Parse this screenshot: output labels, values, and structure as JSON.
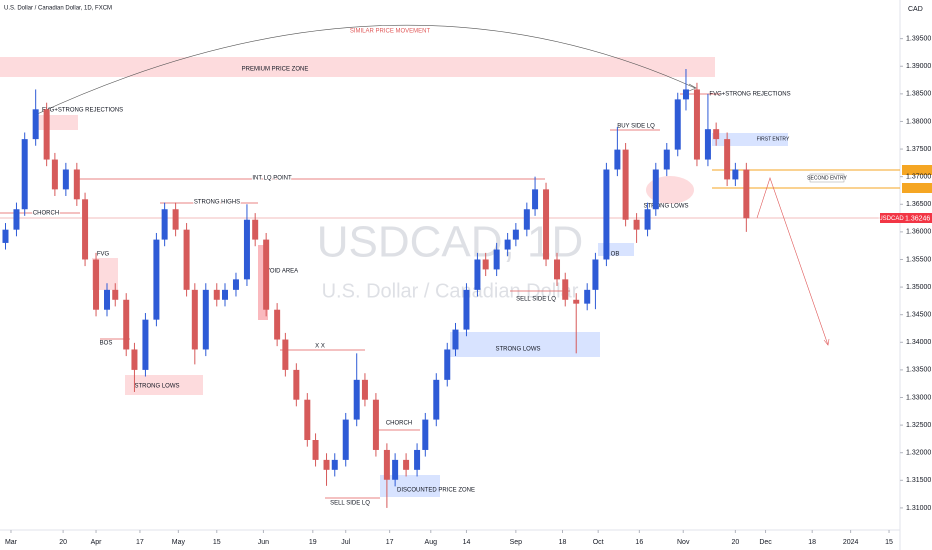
{
  "chart_data": {
    "type": "candlestick",
    "title": "U.S. Dollar / Canadian Dollar, 1D, FXCM",
    "watermark_symbol": "USDCAD, 1D",
    "watermark_name": "U.S. Dollar / Canadian Dollar",
    "currency": "CAD",
    "symbol": "USDCAD",
    "up_color": "#2e5bd6",
    "down_color": "#d65a5a",
    "x": [
      -2,
      2,
      5,
      9,
      13,
      16,
      20,
      24,
      27,
      31,
      35,
      38,
      42,
      45,
      49,
      53,
      56,
      60,
      64,
      67,
      71,
      75,
      78,
      82,
      86,
      89,
      93,
      97,
      100,
      104,
      108,
      111,
      115,
      118,
      122,
      126,
      129,
      133,
      137,
      140,
      144,
      148,
      151,
      155,
      159,
      162,
      166,
      170,
      173,
      177,
      181,
      184,
      188,
      191,
      195,
      199,
      202,
      206,
      210,
      213,
      217,
      221,
      224,
      228,
      232,
      235,
      239,
      243,
      246,
      250,
      254,
      257,
      261,
      264,
      268
    ],
    "open": [
      1.358,
      1.3604,
      1.3641,
      1.3768,
      1.3822,
      1.3731,
      1.3677,
      1.3713,
      1.3659,
      1.355,
      1.3459,
      1.3495,
      1.3477,
      1.3387,
      1.335,
      1.3441,
      1.3586,
      1.3641,
      1.3604,
      1.3495,
      1.3387,
      1.3495,
      1.3477,
      1.3495,
      1.3514,
      1.3622,
      1.3586,
      1.3459,
      1.3405,
      1.335,
      1.3296,
      1.3223,
      1.3187,
      1.3169,
      1.3187,
      1.326,
      1.3332,
      1.3296,
      1.3205,
      1.3151,
      1.3187,
      1.3169,
      1.3205,
      1.326,
      1.3332,
      1.3387,
      1.3423,
      1.3495,
      1.355,
      1.3532,
      1.3568,
      1.3586,
      1.3604,
      1.3641,
      1.3677,
      1.355,
      1.3514,
      1.3477,
      1.347,
      1.3495,
      1.355,
      1.3713,
      1.3749,
      1.3622,
      1.3604,
      1.3641,
      1.3713,
      1.3749,
      1.384,
      1.3858,
      1.3731,
      1.3786,
      1.3768,
      1.3695,
      1.3713
    ],
    "high": [
      1.3616,
      1.3653,
      1.378,
      1.3858,
      1.3834,
      1.3743,
      1.3725,
      1.3725,
      1.3671,
      1.3562,
      1.3507,
      1.3507,
      1.3489,
      1.3399,
      1.3453,
      1.3598,
      1.3653,
      1.3653,
      1.3616,
      1.3507,
      1.3507,
      1.3507,
      1.3507,
      1.3526,
      1.365,
      1.3634,
      1.3598,
      1.3471,
      1.3417,
      1.3362,
      1.3308,
      1.3235,
      1.3199,
      1.3199,
      1.3272,
      1.338,
      1.3344,
      1.3308,
      1.3217,
      1.3199,
      1.3199,
      1.3217,
      1.3272,
      1.3344,
      1.3399,
      1.3435,
      1.3507,
      1.3562,
      1.3562,
      1.358,
      1.3598,
      1.3616,
      1.3653,
      1.37,
      1.3689,
      1.3562,
      1.3526,
      1.3489,
      1.3507,
      1.3562,
      1.3725,
      1.379,
      1.3761,
      1.3634,
      1.3653,
      1.3725,
      1.3761,
      1.3852,
      1.3895,
      1.387,
      1.385,
      1.3798,
      1.378,
      1.3725,
      1.3725
    ],
    "low": [
      1.3568,
      1.3592,
      1.3629,
      1.3756,
      1.3719,
      1.3665,
      1.3665,
      1.3647,
      1.3538,
      1.3447,
      1.3447,
      1.3465,
      1.3375,
      1.331,
      1.3338,
      1.3429,
      1.3574,
      1.3592,
      1.3483,
      1.336,
      1.3375,
      1.3465,
      1.3465,
      1.3483,
      1.3502,
      1.3574,
      1.3447,
      1.3393,
      1.3338,
      1.3284,
      1.3211,
      1.3175,
      1.314,
      1.3157,
      1.3175,
      1.3248,
      1.3284,
      1.3193,
      1.31,
      1.3139,
      1.3157,
      1.3157,
      1.3193,
      1.3248,
      1.332,
      1.3375,
      1.3411,
      1.3483,
      1.352,
      1.352,
      1.3556,
      1.3574,
      1.3592,
      1.3629,
      1.3538,
      1.3502,
      1.3465,
      1.338,
      1.3458,
      1.346,
      1.3538,
      1.3701,
      1.361,
      1.358,
      1.3592,
      1.3629,
      1.3701,
      1.3737,
      1.382,
      1.3719,
      1.3719,
      1.3756,
      1.3683,
      1.3683,
      1.36
    ],
    "close": [
      1.3604,
      1.3641,
      1.3768,
      1.3822,
      1.3731,
      1.3677,
      1.3713,
      1.3659,
      1.355,
      1.3459,
      1.3495,
      1.3477,
      1.3387,
      1.335,
      1.3441,
      1.3586,
      1.3641,
      1.3604,
      1.3495,
      1.3387,
      1.3495,
      1.3477,
      1.3495,
      1.3514,
      1.3622,
      1.3586,
      1.3459,
      1.3405,
      1.335,
      1.3296,
      1.3223,
      1.3187,
      1.3169,
      1.3187,
      1.326,
      1.3332,
      1.3296,
      1.3205,
      1.3151,
      1.3187,
      1.3169,
      1.3205,
      1.326,
      1.3332,
      1.3387,
      1.3423,
      1.3495,
      1.355,
      1.3532,
      1.3568,
      1.3586,
      1.3604,
      1.3641,
      1.3677,
      1.355,
      1.3514,
      1.3477,
      1.347,
      1.3495,
      1.355,
      1.3713,
      1.3749,
      1.3622,
      1.3604,
      1.3641,
      1.3713,
      1.3749,
      1.384,
      1.3858,
      1.3731,
      1.3786,
      1.3768,
      1.3695,
      1.3713,
      1.36246
    ],
    "xlim": [
      -4,
      324
    ],
    "xticks": [
      {
        "value": 0,
        "label": "Mar"
      },
      {
        "value": 19,
        "label": "20"
      },
      {
        "value": 31,
        "label": "Apr"
      },
      {
        "value": 47,
        "label": "17"
      },
      {
        "value": 61,
        "label": "May"
      },
      {
        "value": 75,
        "label": "15"
      },
      {
        "value": 92,
        "label": "Jun"
      },
      {
        "value": 110,
        "label": "19"
      },
      {
        "value": 122,
        "label": "Jul"
      },
      {
        "value": 138,
        "label": "17"
      },
      {
        "value": 153,
        "label": "Aug"
      },
      {
        "value": 166,
        "label": "14"
      },
      {
        "value": 184,
        "label": "Sep"
      },
      {
        "value": 201,
        "label": "18"
      },
      {
        "value": 214,
        "label": "Oct"
      },
      {
        "value": 229,
        "label": "16"
      },
      {
        "value": 245,
        "label": "Nov"
      },
      {
        "value": 264,
        "label": "20"
      },
      {
        "value": 275,
        "label": "Dec"
      },
      {
        "value": 292,
        "label": "18"
      },
      {
        "value": 306,
        "label": "2024"
      },
      {
        "value": 320,
        "label": "15"
      }
    ],
    "ylim": [
      1.306,
      1.402
    ],
    "yticks": [
      {
        "value": 1.31,
        "label": "1.31000"
      },
      {
        "value": 1.315,
        "label": "1.31500"
      },
      {
        "value": 1.32,
        "label": "1.32000"
      },
      {
        "value": 1.325,
        "label": "1.32500"
      },
      {
        "value": 1.33,
        "label": "1.33000"
      },
      {
        "value": 1.335,
        "label": "1.33500"
      },
      {
        "value": 1.34,
        "label": "1.34000"
      },
      {
        "value": 1.345,
        "label": "1.34500"
      },
      {
        "value": 1.35,
        "label": "1.35000"
      },
      {
        "value": 1.355,
        "label": "1.35500"
      },
      {
        "value": 1.36,
        "label": "1.36000"
      },
      {
        "value": 1.365,
        "label": "1.36500"
      },
      {
        "value": 1.37,
        "label": "1.37000"
      },
      {
        "value": 1.375,
        "label": "1.37500"
      },
      {
        "value": 1.38,
        "label": "1.38000"
      },
      {
        "value": 1.385,
        "label": "1.38500"
      },
      {
        "value": 1.39,
        "label": "1.39000"
      },
      {
        "value": 1.395,
        "label": "1.39500"
      }
    ],
    "annotations": [
      "SIMILAR PRICE MOVEMENT",
      "PREMIUM PRICE ZONE",
      "FVG+STRONG REJECTIONS",
      "CHORCH",
      "INT LQ POINT",
      "STRONG HIGHS",
      "FVG",
      "VOID AREA",
      "BOS",
      "STRONG LOWS",
      "X X",
      "CHORCH",
      "SELL SIDE LQ",
      "DISCOUNTED PRICE ZONE",
      "STRONG LOWS",
      "SELL SIDE LQ",
      "BUY SIDE LQ",
      "OB",
      "STRONG LOWS",
      "FVG+STRONG REJECTIONS",
      "FIRST ENTRY",
      "SECOND ENTRY"
    ]
  }
}
